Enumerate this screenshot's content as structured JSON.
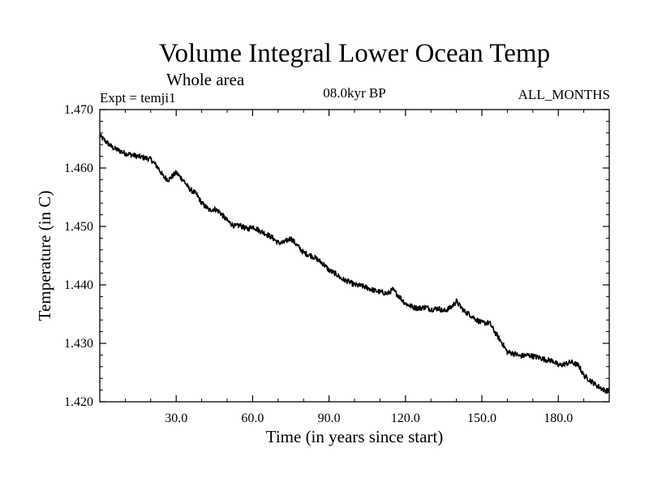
{
  "chart_data": {
    "type": "line",
    "title": "Volume Integral Lower Ocean Temp",
    "subtitle": "Whole area",
    "left_label": "Expt = temji1",
    "center_label": "08.0kyr BP",
    "right_label": "ALL_MONTHS",
    "xlabel": "Time (in years since start)",
    "ylabel": "Temperature (in C)",
    "xlim": [
      0,
      200
    ],
    "ylim": [
      1.42,
      1.47
    ],
    "x_ticks": [
      30,
      60,
      90,
      120,
      150,
      180
    ],
    "x_tick_labels": [
      "30.0",
      "60.0",
      "90.0",
      "120.0",
      "150.0",
      "180.0"
    ],
    "y_ticks": [
      1.42,
      1.43,
      1.44,
      1.45,
      1.46,
      1.47
    ],
    "y_tick_labels": [
      "1.420",
      "1.430",
      "1.440",
      "1.450",
      "1.460",
      "1.470"
    ],
    "grid": false,
    "series": [
      {
        "name": "temji1",
        "color": "#000000",
        "x": [
          0,
          5,
          10,
          15,
          20,
          23,
          25,
          27,
          30,
          33,
          35,
          38,
          40,
          43,
          45,
          47,
          50,
          53,
          55,
          58,
          60,
          63,
          65,
          68,
          70,
          72,
          75,
          78,
          80,
          83,
          85,
          88,
          90,
          93,
          95,
          98,
          100,
          103,
          105,
          108,
          110,
          113,
          115,
          118,
          120,
          123,
          125,
          128,
          130,
          133,
          135,
          138,
          140,
          143,
          145,
          148,
          150,
          153,
          155,
          158,
          160,
          163,
          165,
          168,
          170,
          173,
          175,
          178,
          180,
          183,
          185,
          188,
          190,
          193,
          195,
          198,
          200
        ],
        "y": [
          1.4655,
          1.4635,
          1.4625,
          1.462,
          1.4615,
          1.46,
          1.4585,
          1.458,
          1.4592,
          1.4578,
          1.4565,
          1.4555,
          1.454,
          1.4528,
          1.453,
          1.4525,
          1.451,
          1.45,
          1.4502,
          1.4495,
          1.45,
          1.4492,
          1.4488,
          1.448,
          1.4472,
          1.4472,
          1.448,
          1.4465,
          1.4455,
          1.445,
          1.4445,
          1.4435,
          1.4425,
          1.4418,
          1.441,
          1.4405,
          1.44,
          1.4398,
          1.4395,
          1.439,
          1.4388,
          1.4385,
          1.4392,
          1.4378,
          1.4368,
          1.4362,
          1.436,
          1.4362,
          1.4358,
          1.436,
          1.4355,
          1.4362,
          1.4372,
          1.4355,
          1.435,
          1.434,
          1.4335,
          1.4335,
          1.432,
          1.43,
          1.4285,
          1.4282,
          1.4278,
          1.428,
          1.4278,
          1.4275,
          1.4272,
          1.427,
          1.4262,
          1.4265,
          1.4268,
          1.4262,
          1.4245,
          1.4235,
          1.4228,
          1.422,
          1.4218
        ]
      }
    ]
  }
}
